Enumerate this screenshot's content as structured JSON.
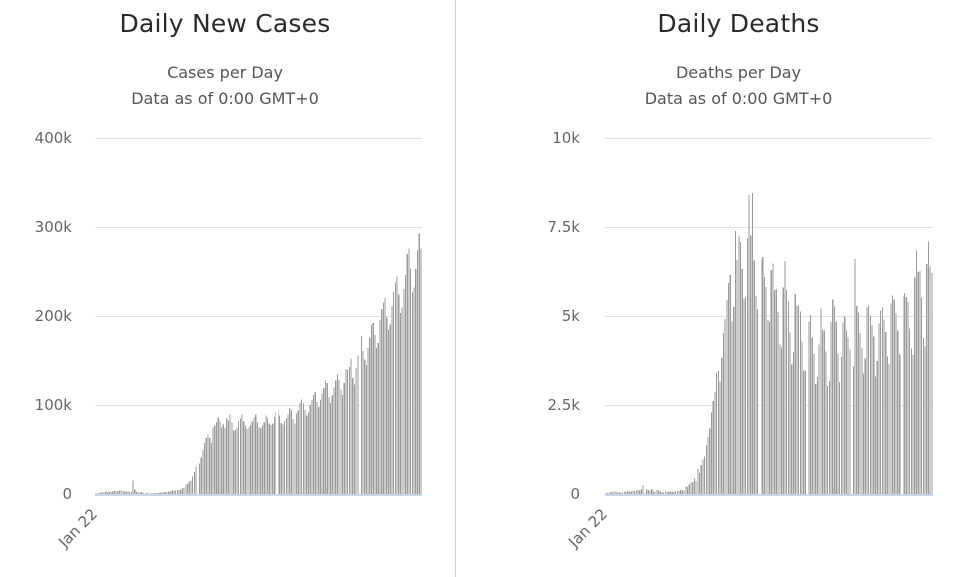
{
  "colors": {
    "bar": "#9a9a9a",
    "grid": "#b4b4b4",
    "baseline": "#c7d7ec",
    "divider": "#cccccc",
    "title_text": "#2a2a2a",
    "subtitle_text": "#555555",
    "axis_text": "#666666"
  },
  "chart_data": [
    {
      "type": "bar",
      "title": "Daily New Cases",
      "subtitle": [
        "Cases per Day",
        "Data as of 0:00 GMT+0"
      ],
      "xtick_labels": [
        "Jan 22"
      ],
      "ytick_labels": [
        "0",
        "100k",
        "200k",
        "300k",
        "400k"
      ],
      "ylim": [
        0,
        400000
      ],
      "grid": "on",
      "legend": "none",
      "values": [
        500,
        600,
        900,
        1800,
        1500,
        1800,
        2600,
        1800,
        2000,
        2600,
        2800,
        3200,
        3000,
        3400,
        3900,
        3700,
        3400,
        2700,
        3000,
        2600,
        2100,
        2100,
        15200,
        5100,
        2700,
        2200,
        2100,
        2000,
        900,
        600,
        900,
        600,
        500,
        700,
        800,
        1000,
        1300,
        1400,
        1800,
        1800,
        2000,
        2300,
        2500,
        2600,
        2900,
        3700,
        3900,
        4000,
        4300,
        4600,
        5300,
        6700,
        7500,
        10900,
        11000,
        13900,
        15400,
        19700,
        24900,
        30600,
        32800,
        34000,
        40800,
        49200,
        57500,
        63200,
        66600,
        63200,
        57300,
        74700,
        76900,
        80700,
        86000,
        82100,
        74700,
        78000,
        74000,
        85000,
        82000,
        89600,
        80200,
        71100,
        71700,
        74300,
        82300,
        84600,
        89100,
        81600,
        76200,
        73100,
        75300,
        77800,
        81200,
        85900,
        89300,
        80500,
        75100,
        74400,
        77100,
        80100,
        88300,
        86200,
        79400,
        77500,
        79200,
        86500,
        91900,
        94500,
        88100,
        79800,
        77900,
        82100,
        84900,
        89200,
        95900,
        93800,
        84500,
        79100,
        90700,
        94100,
        102100,
        106000,
        101500,
        94200,
        88300,
        91800,
        99900,
        105400,
        111200,
        114400,
        103100,
        98000,
        105600,
        112800,
        119200,
        127300,
        124900,
        108900,
        102000,
        110700,
        119500,
        127800,
        134100,
        128900,
        117500,
        111100,
        124800,
        140600,
        139200,
        142600,
        152400,
        130400,
        122900,
        141500,
        155400,
        167200,
        177300,
        160800,
        151400,
        145200,
        163900,
        175800,
        189700,
        192200,
        178500,
        164000,
        169400,
        195700,
        207800,
        215100,
        220200,
        198600,
        184400,
        190400,
        211300,
        226800,
        237900,
        244400,
        224000,
        203400,
        209600,
        230500,
        246000,
        269800,
        275700,
        253600,
        226300,
        231800,
        252800,
        273400,
        292500,
        276000
      ]
    },
    {
      "type": "bar",
      "title": "Daily Deaths",
      "subtitle": [
        "Deaths per Day",
        "Data as of 0:00 GMT+0"
      ],
      "xtick_labels": [
        "Jan 22"
      ],
      "ytick_labels": [
        "0",
        "2.5k",
        "5k",
        "7.5k",
        "10k"
      ],
      "ylim": [
        0,
        10000
      ],
      "grid": "on",
      "legend": "none",
      "values": [
        17,
        25,
        26,
        56,
        49,
        64,
        66,
        38,
        43,
        46,
        45,
        58,
        64,
        66,
        73,
        73,
        86,
        89,
        97,
        108,
        97,
        146,
        254,
        13,
        143,
        106,
        98,
        136,
        71,
        52,
        106,
        98,
        71,
        52,
        45,
        60,
        57,
        64,
        68,
        58,
        66,
        72,
        84,
        80,
        106,
        102,
        95,
        229,
        202,
        271,
        330,
        341,
        433,
        370,
        699,
        593,
        815,
        963,
        1058,
        1381,
        1598,
        1840,
        2287,
        2613,
        2866,
        3419,
        3456,
        3163,
        3823,
        4525,
        4916,
        5453,
        5929,
        6150,
        4846,
        5254,
        7382,
        6568,
        7268,
        7074,
        6320,
        5482,
        5521,
        7183,
        8404,
        7267,
        8459,
        6562,
        5559,
        5201,
        7118,
        6582,
        6662,
        6096,
        5815,
        4881,
        4826,
        6286,
        6479,
        5731,
        5749,
        5118,
        4194,
        4116,
        5804,
        6549,
        5728,
        5404,
        4539,
        3631,
        3989,
        5624,
        5282,
        5294,
        5130,
        4288,
        3473,
        3453,
        4697,
        4841,
        5023,
        4401,
        3926,
        3090,
        3282,
        4199,
        5212,
        4611,
        4599,
        4002,
        3036,
        3181,
        4836,
        5463,
        5273,
        4848,
        3952,
        3146,
        3849,
        4817,
        4985,
        4590,
        4395,
        4061,
        3370,
        3577,
        6602,
        5285,
        5099,
        4523,
        4105,
        3381,
        3813,
        5234,
        5296,
        5021,
        4745,
        4420,
        3294,
        3743,
        4789,
        5156,
        5245,
        4900,
        4544,
        3862,
        3655,
        5357,
        5580,
        5463,
        5075,
        4596,
        3927,
        3892,
        5574,
        5651,
        5536,
        5391,
        4642,
        4089,
        3909,
        6084,
        6840,
        6231,
        6263,
        5525,
        4383,
        4164,
        6462,
        7096,
        6394,
        6205
      ]
    }
  ]
}
